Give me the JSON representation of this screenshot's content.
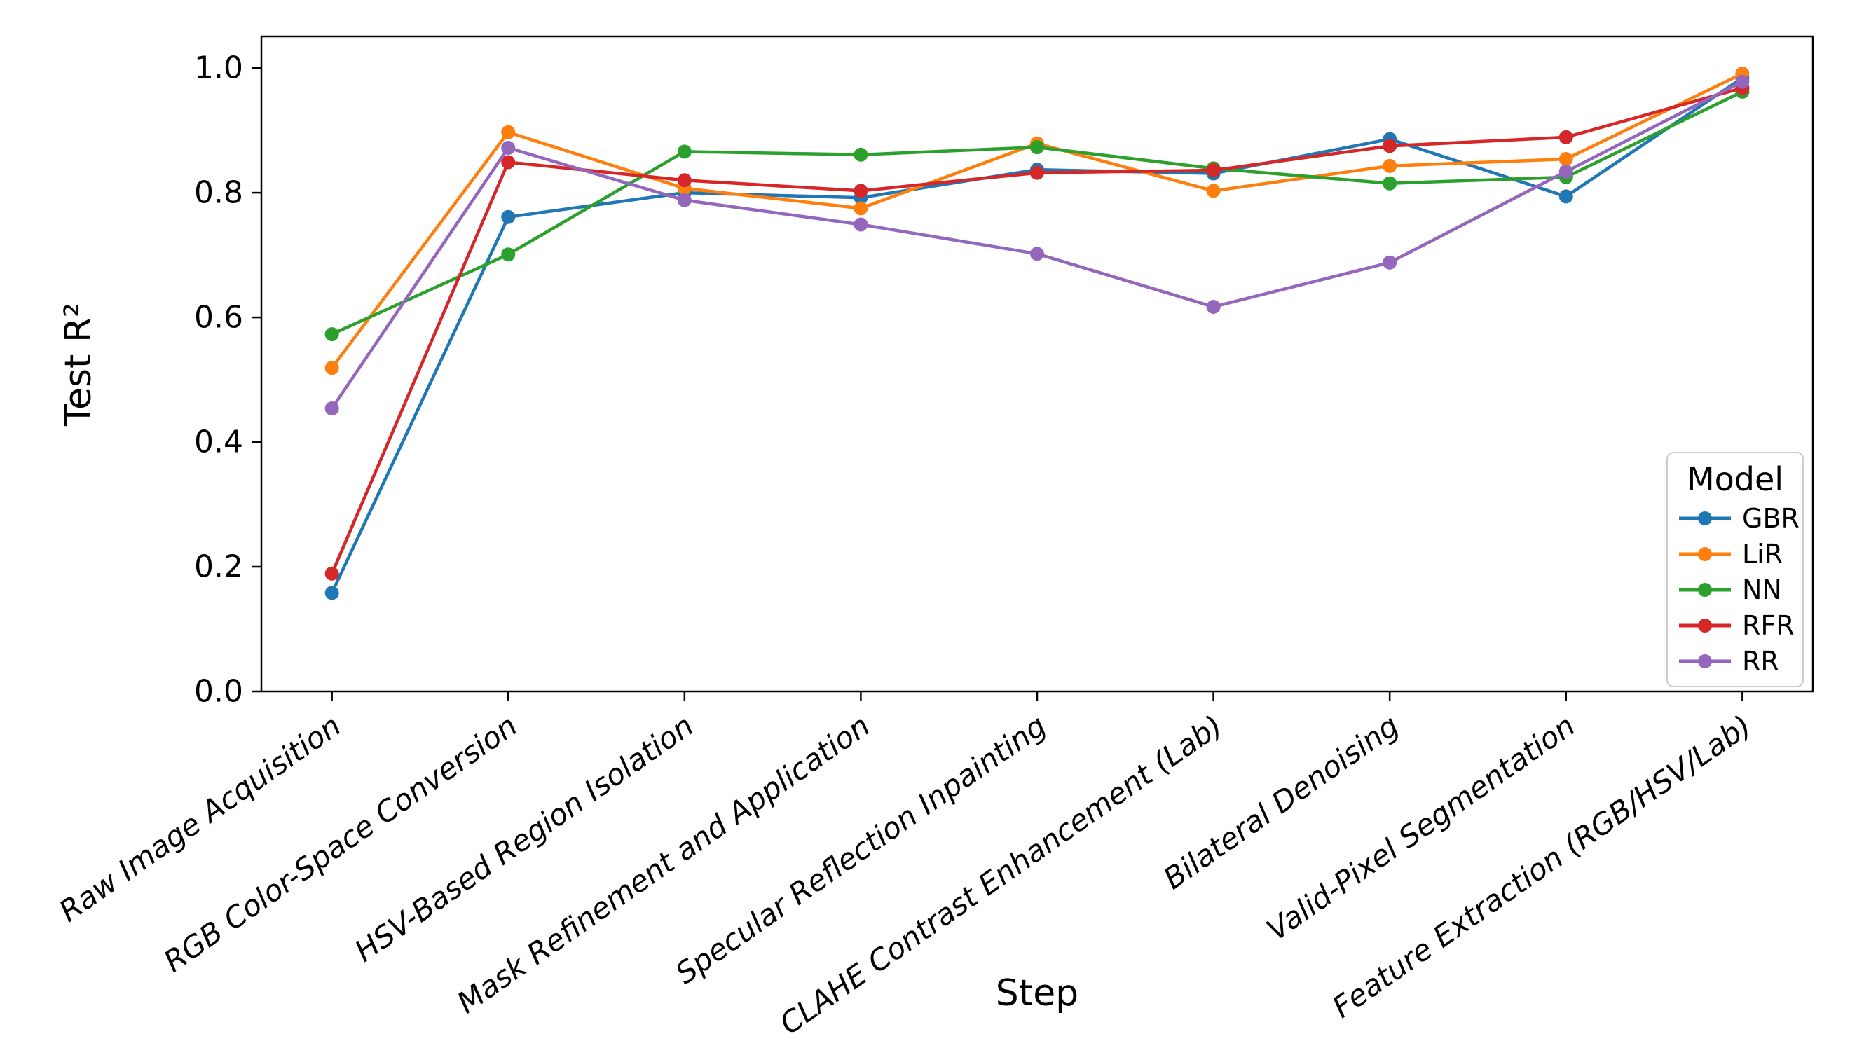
{
  "figure": {
    "ylabel": "Test R²",
    "xlabel": "Step",
    "background_color": "#ffffff",
    "spine_color": "#000000",
    "tick_label_color": "#000000"
  },
  "legend": {
    "title": "Model",
    "position": "lower right inside axes",
    "border_color": "#cccccc"
  },
  "chart_data": {
    "type": "line",
    "title": "",
    "xlabel": "Step",
    "ylabel": "Test R²",
    "grid": false,
    "ylim": [
      0.0,
      1.05
    ],
    "y_ticks": [
      0.0,
      0.2,
      0.4,
      0.6,
      0.8,
      1.0
    ],
    "y_tick_labels": [
      "0.0",
      "0.2",
      "0.4",
      "0.6",
      "0.8",
      "1.0"
    ],
    "x_tick_style": "italic, rotated ~35deg, right-anchored",
    "legend_title": "Model",
    "legend_position": "right",
    "marker": "o",
    "categories": [
      "Raw Image Acquisition",
      "RGB Color-Space Conversion",
      "HSV-Based Region Isolation",
      "Mask Refinement and Application",
      "Specular Reflection Inpainting",
      "CLAHE Contrast Enhancement (Lab)",
      "Bilateral Denoising",
      "Valid-Pixel Segmentation",
      "Feature Extraction (RGB/HSV/Lab)"
    ],
    "series": [
      {
        "name": "GBR",
        "color": "#1f77b4",
        "values": [
          0.158,
          0.761,
          0.8,
          0.792,
          0.837,
          0.831,
          0.886,
          0.794,
          0.984
        ]
      },
      {
        "name": "LiR",
        "color": "#ff7f0e",
        "values": [
          0.519,
          0.897,
          0.807,
          0.775,
          0.879,
          0.803,
          0.843,
          0.854,
          0.991
        ]
      },
      {
        "name": "NN",
        "color": "#2ca02c",
        "values": [
          0.573,
          0.701,
          0.866,
          0.861,
          0.873,
          0.839,
          0.815,
          0.825,
          0.962
        ]
      },
      {
        "name": "RFR",
        "color": "#d62728",
        "values": [
          0.189,
          0.849,
          0.82,
          0.803,
          0.832,
          0.836,
          0.875,
          0.889,
          0.968
        ]
      },
      {
        "name": "RR",
        "color": "#9467bd",
        "values": [
          0.454,
          0.872,
          0.788,
          0.749,
          0.702,
          0.617,
          0.688,
          0.834,
          0.978
        ]
      }
    ]
  }
}
